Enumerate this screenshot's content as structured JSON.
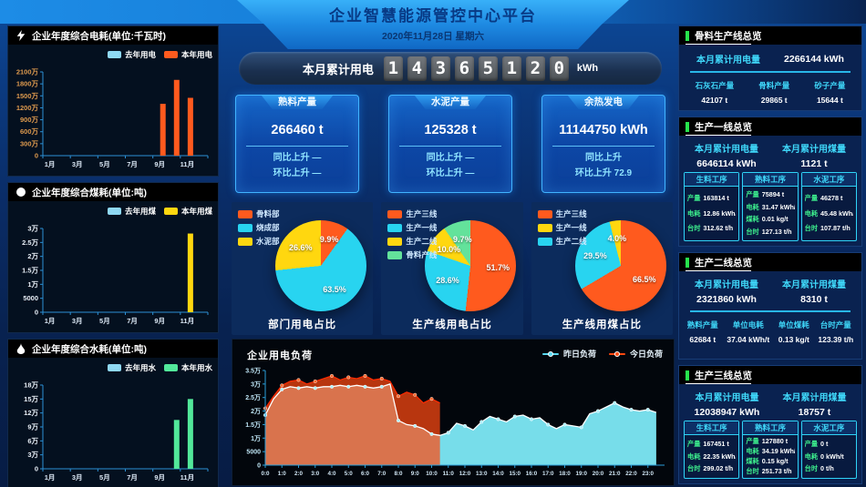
{
  "header": {
    "title": "企业智慧能源管控中心平台",
    "date": "2020年11月28日 星期六"
  },
  "counter": {
    "label": "本月累计用电",
    "digits": "14365120",
    "unit": "kWh"
  },
  "stat_cards": [
    {
      "title": "熟料产量",
      "value": "266460 t",
      "rows": [
        "同比上升 —",
        "环比上升 —"
      ]
    },
    {
      "title": "水泥产量",
      "value": "125328 t",
      "rows": [
        "同比上升 —",
        "环比上升 —"
      ]
    },
    {
      "title": "余热发电",
      "value": "11144750 kWh",
      "rows": [
        "同比上升",
        "环比上升 72.9"
      ]
    }
  ],
  "right_panels": [
    {
      "title": "骨料生产线总览",
      "type": "columns",
      "stats": [
        {
          "label": "本月累计用电量",
          "value": "2266144 kWh"
        }
      ],
      "columns": [
        {
          "label": "石灰石产量",
          "value": "42107 t"
        },
        {
          "label": "骨料产量",
          "value": "29865 t"
        },
        {
          "label": "砂子产量",
          "value": "15644 t"
        }
      ]
    },
    {
      "title": "生产一线总览",
      "type": "process",
      "stats": [
        {
          "label": "本月累计用电量",
          "value": "6646114 kWh"
        },
        {
          "label": "本月累计用煤量",
          "value": "1121 t"
        }
      ],
      "process_cards": [
        {
          "title": "生料工序",
          "rows": [
            {
              "label": "产量",
              "value": "163814 t"
            },
            {
              "label": "电耗",
              "value": "12.86 kWh/t"
            },
            {
              "label": "台时",
              "value": "312.62 t/h"
            }
          ]
        },
        {
          "title": "熟料工序",
          "rows": [
            {
              "label": "产量",
              "value": "75894 t"
            },
            {
              "label": "电耗",
              "value": "31.47 kWh/t"
            },
            {
              "label": "煤耗",
              "value": "0.01 kg/t"
            },
            {
              "label": "台时",
              "value": "127.13 t/h"
            }
          ]
        },
        {
          "title": "水泥工序",
          "rows": [
            {
              "label": "产量",
              "value": "46278 t"
            },
            {
              "label": "电耗",
              "value": "45.48 kWh/t"
            },
            {
              "label": "台时",
              "value": "107.87 t/h"
            }
          ]
        }
      ]
    },
    {
      "title": "生产二线总览",
      "type": "columns",
      "stats": [
        {
          "label": "本月累计用电量",
          "value": "2321860 kWh"
        },
        {
          "label": "本月累计用煤量",
          "value": "8310 t"
        }
      ],
      "columns": [
        {
          "label": "熟料产量",
          "value": "62684 t"
        },
        {
          "label": "单位电耗",
          "value": "37.04 kWh/t"
        },
        {
          "label": "单位煤耗",
          "value": "0.13 kg/t"
        },
        {
          "label": "台时产量",
          "value": "123.39 t/h"
        }
      ]
    },
    {
      "title": "生产三线总览",
      "type": "process",
      "stats": [
        {
          "label": "本月累计用电量",
          "value": "12038947 kWh"
        },
        {
          "label": "本月累计用煤量",
          "value": "18757 t"
        }
      ],
      "process_cards": [
        {
          "title": "生料工序",
          "rows": [
            {
              "label": "产量",
              "value": "167451 t"
            },
            {
              "label": "电耗",
              "value": "22.35 kWh/t"
            },
            {
              "label": "台时",
              "value": "299.02 t/h"
            }
          ]
        },
        {
          "title": "熟料工序",
          "rows": [
            {
              "label": "产量",
              "value": "127880 t"
            },
            {
              "label": "电耗",
              "value": "34.19 kWh/t"
            },
            {
              "label": "煤耗",
              "value": "0.15 kg/t"
            },
            {
              "label": "台时",
              "value": "251.73 t/h"
            }
          ]
        },
        {
          "title": "水泥工序",
          "rows": [
            {
              "label": "产量",
              "value": "0 t"
            },
            {
              "label": "电耗",
              "value": "0 kWh/t"
            },
            {
              "label": "台时",
              "value": "0 t/h"
            }
          ]
        }
      ]
    }
  ],
  "chart_data": [
    {
      "id": "annual-power",
      "type": "bar",
      "title": "企业年度综合电耗(单位:千瓦时)",
      "icon": "lightning-icon",
      "categories": [
        "1月",
        "2月",
        "3月",
        "4月",
        "5月",
        "6月",
        "7月",
        "8月",
        "9月",
        "10月",
        "11月",
        "12月"
      ],
      "x_tick_labels": [
        "1月",
        "3月",
        "5月",
        "7月",
        "9月",
        "11月"
      ],
      "ylim": [
        0,
        21000000
      ],
      "y_ticks": [
        "0",
        "300万",
        "600万",
        "900万",
        "1200万",
        "1500万",
        "1800万",
        "2100万"
      ],
      "tick_color": "#df9a4e",
      "grid": false,
      "legend_position": "top-right",
      "series": [
        {
          "name": "去年用电",
          "color": "#8fd8f2",
          "values": [
            0,
            0,
            0,
            0,
            0,
            0,
            0,
            0,
            0,
            0,
            0,
            0
          ]
        },
        {
          "name": "本年用电",
          "color": "#ff5a1e",
          "values": [
            0,
            0,
            0,
            0,
            0,
            0,
            0,
            0,
            13000000,
            19000000,
            14500000,
            0
          ]
        }
      ]
    },
    {
      "id": "annual-coal",
      "type": "bar",
      "title": "企业年度综合煤耗(单位:吨)",
      "icon": "coal-icon",
      "categories": [
        "1月",
        "2月",
        "3月",
        "4月",
        "5月",
        "6月",
        "7月",
        "8月",
        "9月",
        "10月",
        "11月",
        "12月"
      ],
      "x_tick_labels": [
        "1月",
        "3月",
        "5月",
        "7月",
        "9月",
        "11月"
      ],
      "ylim": [
        0,
        30000
      ],
      "y_ticks": [
        "0",
        "5000",
        "1万",
        "1.5万",
        "2万",
        "2.5万",
        "3万"
      ],
      "tick_color": "#e8eef6",
      "grid": false,
      "legend_position": "top-right",
      "series": [
        {
          "name": "去年用煤",
          "color": "#8fd8f2",
          "values": [
            0,
            0,
            0,
            0,
            0,
            0,
            0,
            0,
            0,
            0,
            0,
            0
          ]
        },
        {
          "name": "本年用煤",
          "color": "#ffd70f",
          "values": [
            0,
            0,
            0,
            0,
            0,
            0,
            0,
            0,
            0,
            0,
            28188,
            0
          ]
        }
      ]
    },
    {
      "id": "annual-water",
      "type": "bar",
      "title": "企业年度综合水耗(单位:吨)",
      "icon": "water-drop-icon",
      "categories": [
        "1月",
        "2月",
        "3月",
        "4月",
        "5月",
        "6月",
        "7月",
        "8月",
        "9月",
        "10月",
        "11月",
        "12月"
      ],
      "x_tick_labels": [
        "1月",
        "3月",
        "5月",
        "7月",
        "9月",
        "11月"
      ],
      "ylim": [
        0,
        180000
      ],
      "y_ticks": [
        "0",
        "3万",
        "6万",
        "9万",
        "12万",
        "15万",
        "18万"
      ],
      "tick_color": "#e8eef6",
      "grid": false,
      "legend_position": "top-right",
      "series": [
        {
          "name": "去年用水",
          "color": "#8fd8f2",
          "values": [
            0,
            0,
            0,
            0,
            0,
            0,
            0,
            0,
            0,
            0,
            0,
            0
          ]
        },
        {
          "name": "本年用水",
          "color": "#52e89a",
          "values": [
            0,
            0,
            0,
            0,
            0,
            0,
            0,
            0,
            0,
            105000,
            150000,
            0
          ]
        }
      ]
    },
    {
      "id": "dept-power-pie",
      "type": "pie",
      "title": "部门用电占比",
      "legend_position": "top-left",
      "legend": [
        {
          "name": "骨料部",
          "color": "#ff5a1e"
        },
        {
          "name": "烧成部",
          "color": "#28d4f0"
        },
        {
          "name": "水泥部",
          "color": "#ffd70f"
        }
      ],
      "slices": [
        {
          "name": "骨料部",
          "color": "#ff5a1e",
          "value": 9.9,
          "label": "9.9%"
        },
        {
          "name": "烧成部",
          "color": "#28d4f0",
          "value": 63.5,
          "label": "63.5%"
        },
        {
          "name": "水泥部",
          "color": "#ffd70f",
          "value": 26.6,
          "label": "26.6%"
        }
      ]
    },
    {
      "id": "line-power-pie",
      "type": "pie",
      "title": "生产线用电占比",
      "legend_position": "top-left",
      "legend": [
        {
          "name": "生产三线",
          "color": "#ff5a1e"
        },
        {
          "name": "生产一线",
          "color": "#28d4f0"
        },
        {
          "name": "生产二线",
          "color": "#ffd70f"
        },
        {
          "name": "骨料产线",
          "color": "#63e29b"
        }
      ],
      "slices": [
        {
          "name": "生产三线",
          "color": "#ff5a1e",
          "value": 51.7,
          "label": "51.7%"
        },
        {
          "name": "生产一线",
          "color": "#28d4f0",
          "value": 28.6,
          "label": "28.6%"
        },
        {
          "name": "生产二线",
          "color": "#ffd70f",
          "value": 10.0,
          "label": "10.0%"
        },
        {
          "name": "骨料产线",
          "color": "#63e29b",
          "value": 9.7,
          "label": "9.7%"
        }
      ]
    },
    {
      "id": "line-coal-pie",
      "type": "pie",
      "title": "生产线用煤占比",
      "legend_position": "top-left",
      "legend": [
        {
          "name": "生产三线",
          "color": "#ff5a1e"
        },
        {
          "name": "生产一线",
          "color": "#ffd70f"
        },
        {
          "name": "生产二线",
          "color": "#28d4f0"
        }
      ],
      "slices": [
        {
          "name": "生产三线",
          "color": "#ff5a1e",
          "value": 66.5,
          "label": "66.5%"
        },
        {
          "name": "生产二线",
          "color": "#28d4f0",
          "value": 29.5,
          "label": "29.5%"
        },
        {
          "name": "生产一线",
          "color": "#ffd70f",
          "value": 4.0,
          "label": "4.0%"
        }
      ]
    },
    {
      "id": "load",
      "type": "area",
      "title": "企业用电负荷",
      "legend_position": "top-right",
      "x_ticks": [
        "0:0",
        "1:0",
        "2:0",
        "3:0",
        "4:0",
        "5:0",
        "6:0",
        "7:0",
        "8:0",
        "9:0",
        "10:0",
        "11:0",
        "12:0",
        "13:0",
        "14:0",
        "15:0",
        "16:0",
        "17:0",
        "18:0",
        "19:0",
        "20:0",
        "21:0",
        "22:0",
        "23:0"
      ],
      "xlim": [
        0,
        24
      ],
      "ylim": [
        0,
        35000
      ],
      "y_ticks": [
        "0",
        "5000",
        "1万",
        "1.5万",
        "2万",
        "2.5万",
        "3万",
        "3.5万"
      ],
      "legend": [
        {
          "name": "昨日负荷",
          "color": "#5ad8f0"
        },
        {
          "name": "今日负荷",
          "color": "#ff4a10"
        }
      ],
      "series": [
        {
          "name": "昨日负荷",
          "color": "#7de9f7",
          "x_start": 0,
          "x_step": 0.5,
          "values": [
            18500,
            24500,
            28000,
            29000,
            28500,
            29000,
            28500,
            29000,
            29000,
            29500,
            29000,
            29500,
            29000,
            28500,
            29000,
            30000,
            16500,
            15000,
            14500,
            13500,
            11500,
            11000,
            12000,
            15500,
            14500,
            13000,
            16000,
            18000,
            17000,
            16000,
            18000,
            18500,
            17000,
            17500,
            15000,
            13500,
            15000,
            14500,
            14000,
            19000,
            20000,
            21500,
            23000,
            21500,
            20500,
            20000,
            20500,
            19500
          ]
        },
        {
          "name": "今日负荷",
          "color": "#ff4a10",
          "x_start": 0,
          "x_step": 0.5,
          "values": [
            21000,
            25500,
            29500,
            31000,
            31500,
            30000,
            31000,
            32000,
            33000,
            31500,
            32500,
            32000,
            33000,
            31500,
            32000,
            31000,
            25500,
            27000,
            26000,
            23000,
            24500,
            23000
          ]
        }
      ]
    }
  ]
}
